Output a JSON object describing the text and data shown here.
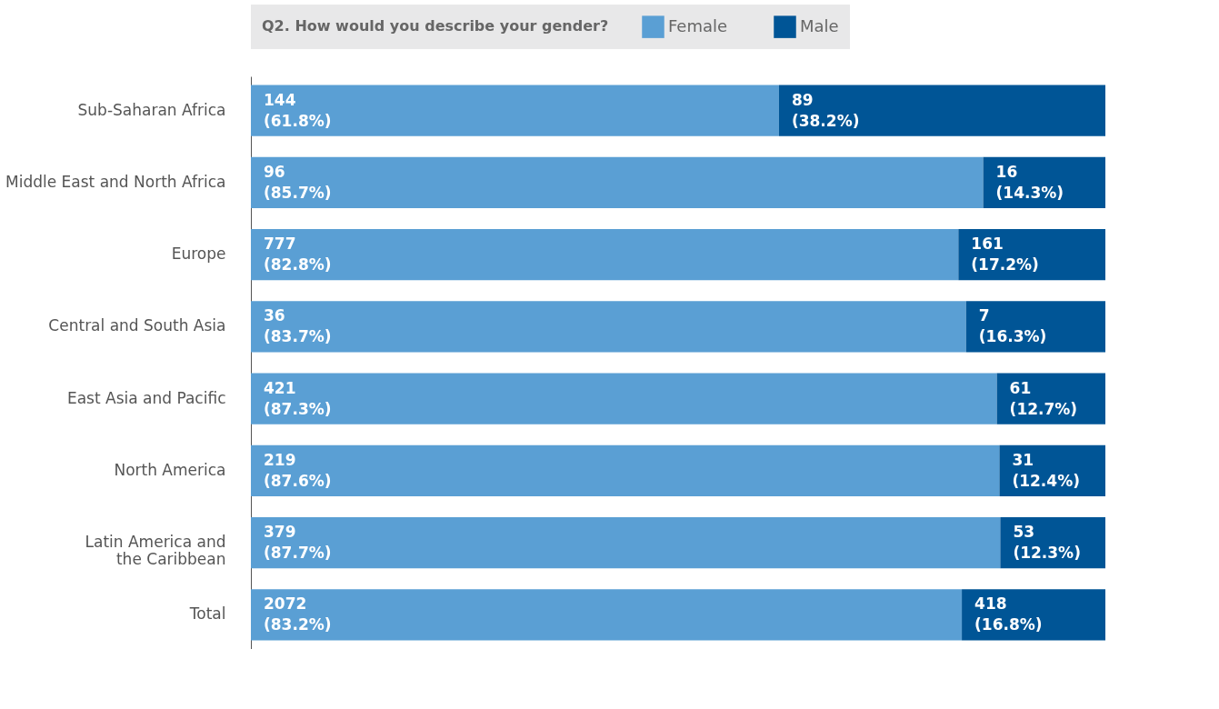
{
  "chart_data": {
    "type": "bar",
    "orientation": "horizontal",
    "stacked": true,
    "legend_title": "Q2. How would you describe your gender?",
    "legend": "top",
    "grid": false,
    "tick_labels": "y",
    "xlim": [
      0,
      100
    ],
    "categories": [
      "Sub-Saharan Africa",
      "Middle East and North Africa",
      "Europe",
      "Central and South Asia",
      "East Asia and Pacific",
      "North America",
      "Latin America and\nthe Caribbean",
      "Total"
    ],
    "series": [
      {
        "name": "Female",
        "color": "#5a9fd4",
        "values": [
          61.8,
          85.7,
          82.8,
          83.7,
          87.3,
          87.6,
          87.7,
          83.2
        ],
        "value_labels": [
          "144\n(61.8%)",
          "96\n(85.7%)",
          "777\n(82.8%)",
          "36\n(83.7%)",
          "421\n(87.3%)",
          "219\n(87.6%)",
          "379\n(87.7%)",
          "2072\n(83.2%)"
        ]
      },
      {
        "name": "Male",
        "color": "#005596",
        "values": [
          38.2,
          14.3,
          17.2,
          16.3,
          12.7,
          12.4,
          12.3,
          16.8
        ],
        "value_labels": [
          "89\n(38.2%)",
          "16\n(14.3%)",
          "161\n(17.2%)",
          "7\n(16.3%)",
          "61\n(12.7%)",
          "31\n(12.4%)",
          "53\n(12.3%)",
          "418\n(16.8%)"
        ]
      }
    ]
  }
}
